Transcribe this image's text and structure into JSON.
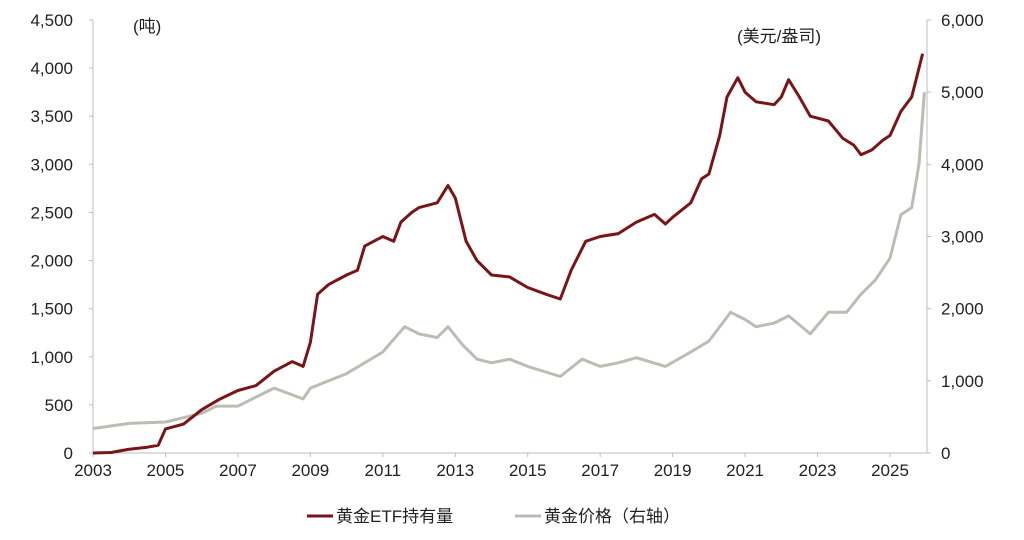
{
  "chart_data": {
    "type": "line",
    "left_unit": "(吨)",
    "right_unit": "(美元/盎司)",
    "x_ticks": [
      "2003",
      "2005",
      "2007",
      "2009",
      "2011",
      "2013",
      "2015",
      "2017",
      "2019",
      "2021",
      "2023",
      "2025"
    ],
    "xlim": [
      2003,
      2025.95
    ],
    "left_axis": {
      "ylim": [
        0,
        4500
      ],
      "ticks": [
        "0",
        "500",
        "1,000",
        "1,500",
        "2,000",
        "2,500",
        "3,000",
        "3,500",
        "4,000",
        "4,500"
      ]
    },
    "right_axis": {
      "ylim": [
        0,
        6000
      ],
      "ticks": [
        "0",
        "1,000",
        "2,000",
        "3,000",
        "4,000",
        "5,000",
        "6,000"
      ]
    },
    "grid": false,
    "legend_position": "bottom",
    "series": [
      {
        "name": "黄金ETF持有量",
        "axis": "left",
        "color": "#7a1416",
        "x": [
          2003.0,
          2003.5,
          2004.0,
          2004.5,
          2004.8,
          2005.0,
          2005.5,
          2006.0,
          2006.5,
          2007.0,
          2007.5,
          2008.0,
          2008.5,
          2008.8,
          2009.0,
          2009.2,
          2009.5,
          2010.0,
          2010.3,
          2010.5,
          2011.0,
          2011.3,
          2011.5,
          2011.8,
          2012.0,
          2012.5,
          2012.8,
          2013.0,
          2013.3,
          2013.6,
          2014.0,
          2014.5,
          2015.0,
          2015.5,
          2015.9,
          2016.2,
          2016.6,
          2017.0,
          2017.5,
          2018.0,
          2018.5,
          2018.8,
          2019.0,
          2019.5,
          2019.8,
          2020.0,
          2020.3,
          2020.5,
          2020.8,
          2021.0,
          2021.3,
          2021.8,
          2022.0,
          2022.2,
          2022.5,
          2022.8,
          2023.3,
          2023.7,
          2024.0,
          2024.2,
          2024.5,
          2024.8,
          2025.0,
          2025.3,
          2025.6,
          2025.9
        ],
        "values": [
          0,
          5,
          40,
          60,
          80,
          250,
          300,
          450,
          560,
          650,
          700,
          850,
          950,
          900,
          1150,
          1650,
          1750,
          1850,
          1900,
          2150,
          2250,
          2200,
          2400,
          2500,
          2550,
          2600,
          2780,
          2650,
          2200,
          2000,
          1850,
          1830,
          1720,
          1650,
          1600,
          1900,
          2200,
          2250,
          2280,
          2400,
          2480,
          2380,
          2450,
          2600,
          2850,
          2900,
          3300,
          3700,
          3900,
          3750,
          3650,
          3620,
          3700,
          3880,
          3700,
          3500,
          3450,
          3270,
          3200,
          3100,
          3150,
          3250,
          3300,
          3550,
          3700,
          4150
        ]
      },
      {
        "name": "黄金价格（右轴）",
        "axis": "right",
        "color": "#bcbdb2",
        "x": [
          2003.0,
          2004.0,
          2005.0,
          2006.0,
          2006.4,
          2007.0,
          2008.0,
          2008.8,
          2009.0,
          2010.0,
          2011.0,
          2011.6,
          2012.0,
          2012.5,
          2012.8,
          2013.2,
          2013.6,
          2014.0,
          2014.5,
          2015.0,
          2015.9,
          2016.5,
          2017.0,
          2017.5,
          2018.0,
          2018.8,
          2019.5,
          2020.0,
          2020.6,
          2021.0,
          2021.3,
          2021.8,
          2022.2,
          2022.8,
          2023.3,
          2023.8,
          2024.2,
          2024.6,
          2025.0,
          2025.3,
          2025.6,
          2025.8,
          2025.95
        ],
        "values": [
          340,
          410,
          430,
          550,
          650,
          650,
          900,
          750,
          900,
          1100,
          1400,
          1750,
          1650,
          1600,
          1750,
          1500,
          1300,
          1250,
          1300,
          1200,
          1060,
          1300,
          1200,
          1250,
          1320,
          1200,
          1400,
          1550,
          1950,
          1850,
          1750,
          1800,
          1900,
          1650,
          1950,
          1950,
          2200,
          2400,
          2700,
          3300,
          3400,
          4000,
          5000
        ]
      }
    ]
  }
}
